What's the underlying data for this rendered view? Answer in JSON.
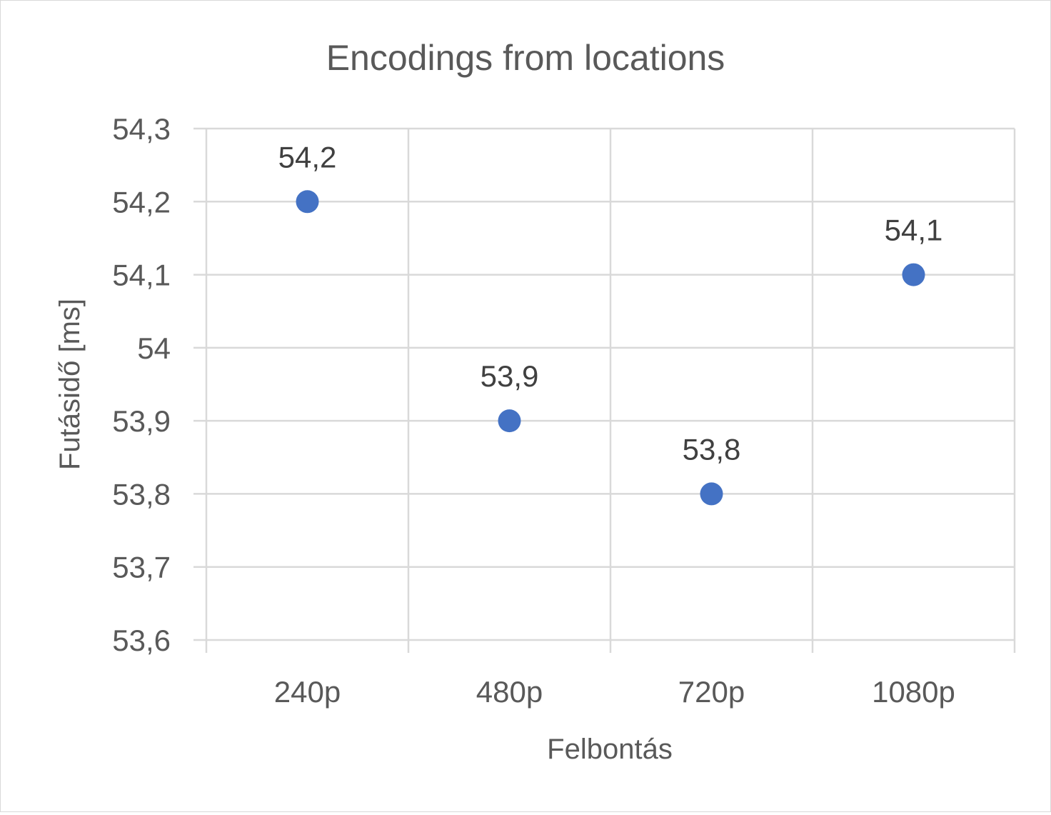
{
  "chart_data": {
    "type": "scatter",
    "title": "Encodings from locations",
    "xlabel": "Felbontás",
    "ylabel": "Futásidő [ms]",
    "categories": [
      "240p",
      "480p",
      "720p",
      "1080p"
    ],
    "series": [
      {
        "values": [
          54.2,
          53.9,
          53.8,
          54.1
        ],
        "data_labels": [
          "54,2",
          "53,9",
          "53,8",
          "54,1"
        ],
        "color": "#4472C4"
      }
    ],
    "ylim": [
      53.6,
      54.3
    ],
    "y_ticks": [
      53.6,
      53.7,
      53.8,
      53.9,
      54.0,
      54.1,
      54.2,
      54.3
    ],
    "y_tick_labels": [
      "53,6",
      "53,7",
      "53,8",
      "53,9",
      "54",
      "54,1",
      "54,2",
      "54,3"
    ],
    "grid": true,
    "legend": "none"
  },
  "colors": {
    "marker": "#4472C4",
    "grid": "#d9d9d9",
    "axis_text": "#595959",
    "data_label": "#404040"
  }
}
